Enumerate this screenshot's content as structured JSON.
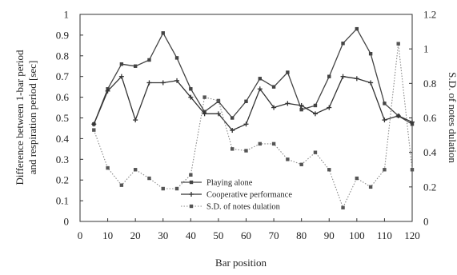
{
  "chart_data": {
    "type": "line",
    "title": "",
    "xlabel": "Bar position",
    "ylabel_left": "Difference between 1-bar period and respiration period [sec]",
    "ylabel_left_lines": [
      "Difference between 1-bar period",
      "and respiration period [sec]"
    ],
    "ylabel_right": "S.D. of notes dulation",
    "xlim": [
      0,
      120
    ],
    "ylim_left": [
      0,
      1
    ],
    "ylim_right": [
      0,
      1.2
    ],
    "x_ticks": [
      "0",
      "10",
      "20",
      "30",
      "40",
      "50",
      "60",
      "70",
      "80",
      "90",
      "100",
      "110",
      "120"
    ],
    "y_ticks_left": [
      "0",
      "0.1",
      "0.2",
      "0.3",
      "0.4",
      "0.5",
      "0.6",
      "0.7",
      "0.8",
      "0.9",
      "1"
    ],
    "y_ticks_right": [
      "0",
      "0.2",
      "0.4",
      "0.6",
      "0.8",
      "1",
      "1.2"
    ],
    "grid": false,
    "legend_position": "bottom-center",
    "series": [
      {
        "name": "Playing alone",
        "axis": "left",
        "style": "solid-square",
        "x": [
          5,
          10,
          15,
          20,
          25,
          30,
          35,
          40,
          45,
          50,
          55,
          60,
          65,
          70,
          75,
          80,
          85,
          90,
          95,
          100,
          105,
          110,
          115,
          120
        ],
        "y": [
          0.47,
          0.64,
          0.76,
          0.75,
          0.78,
          0.91,
          0.79,
          0.64,
          0.53,
          0.58,
          0.5,
          0.58,
          0.69,
          0.65,
          0.72,
          0.54,
          0.56,
          0.7,
          0.86,
          0.93,
          0.81,
          0.57,
          0.51,
          0.47
        ]
      },
      {
        "name": "Cooperative performance",
        "axis": "left",
        "style": "solid-plus",
        "x": [
          5,
          10,
          15,
          20,
          25,
          30,
          35,
          40,
          45,
          50,
          55,
          60,
          65,
          70,
          75,
          80,
          85,
          90,
          95,
          100,
          105,
          110,
          115,
          120
        ],
        "y": [
          0.47,
          0.63,
          0.7,
          0.49,
          0.67,
          0.67,
          0.68,
          0.6,
          0.52,
          0.52,
          0.44,
          0.47,
          0.64,
          0.55,
          0.57,
          0.56,
          0.52,
          0.55,
          0.7,
          0.69,
          0.67,
          0.49,
          0.51,
          0.48
        ]
      },
      {
        "name": "S.D. of notes dulation",
        "axis": "right",
        "style": "dotted-square",
        "x": [
          5,
          10,
          15,
          20,
          25,
          30,
          35,
          40,
          45,
          50,
          55,
          60,
          65,
          70,
          75,
          80,
          85,
          90,
          95,
          100,
          105,
          110,
          115,
          120
        ],
        "y": [
          0.53,
          0.31,
          0.21,
          0.3,
          0.25,
          0.19,
          0.19,
          0.27,
          0.72,
          0.7,
          0.42,
          0.41,
          0.45,
          0.45,
          0.36,
          0.33,
          0.4,
          0.3,
          0.08,
          0.25,
          0.2,
          0.3,
          1.03,
          0.3
        ]
      }
    ]
  }
}
